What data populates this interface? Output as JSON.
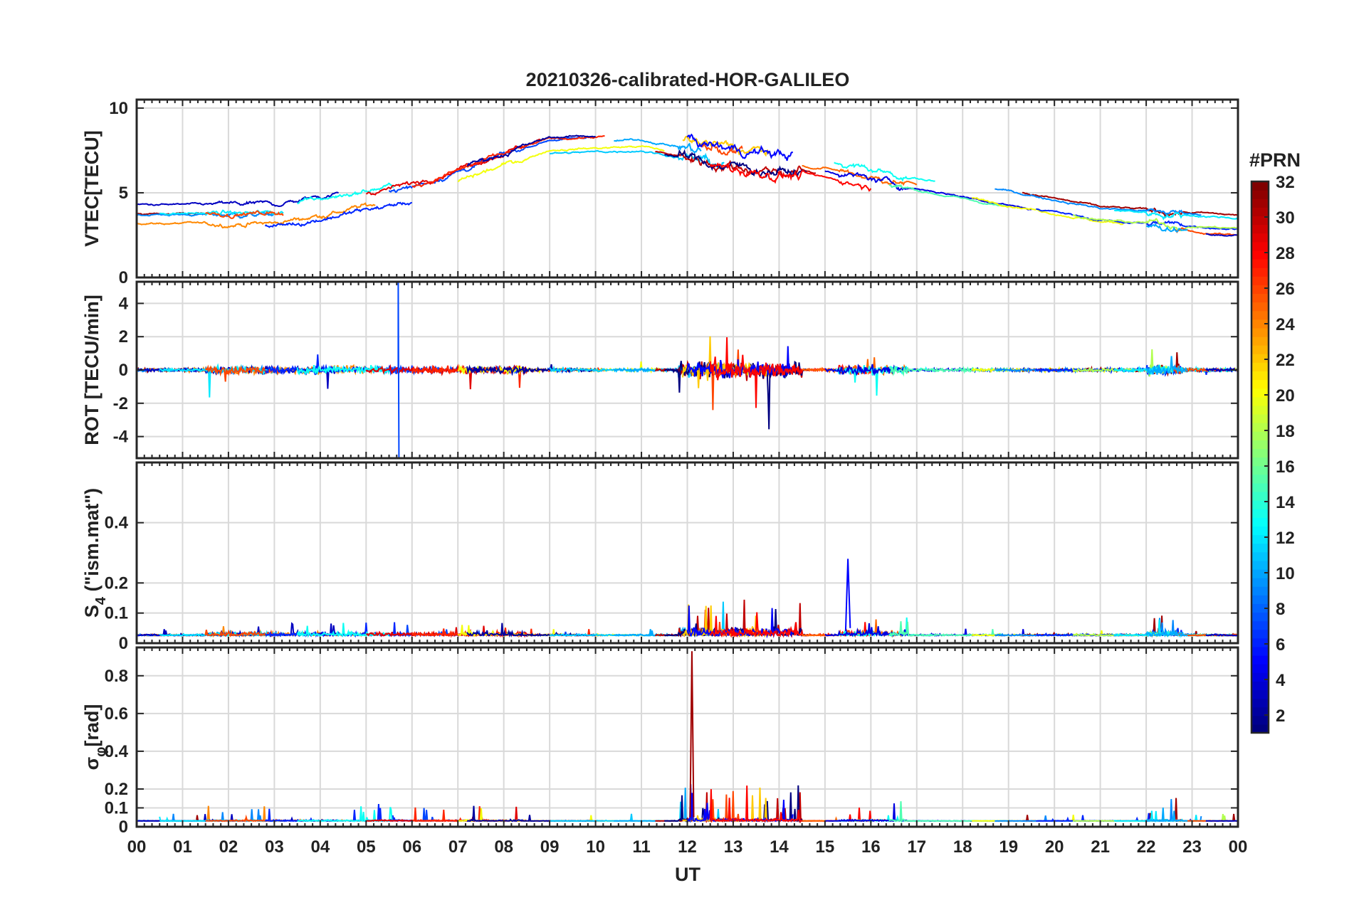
{
  "chart_data": {
    "type": "line",
    "title": "20210326-calibrated-HOR-GALILEO",
    "xlabel": "UT",
    "x_tick_labels": [
      "00",
      "01",
      "02",
      "03",
      "04",
      "05",
      "06",
      "07",
      "08",
      "09",
      "10",
      "11",
      "12",
      "13",
      "14",
      "15",
      "16",
      "17",
      "18",
      "19",
      "20",
      "21",
      "22",
      "23",
      "00"
    ],
    "x_range_hours": [
      0,
      24
    ],
    "grid": true,
    "colorbar": {
      "title": "#PRN",
      "range": [
        1,
        32
      ],
      "tick_labels": [
        "2",
        "4",
        "6",
        "8",
        "10",
        "12",
        "14",
        "16",
        "18",
        "20",
        "22",
        "24",
        "26",
        "28",
        "30",
        "32"
      ],
      "colormap": "jet",
      "dark_blue": "#00008f",
      "dark_red": "#800000"
    },
    "panels": [
      {
        "ylabel": "VTEC[TECU]",
        "ylim": [
          0,
          10.5
        ],
        "y_tick_labels": [
          "0",
          "5",
          "10"
        ],
        "y_tick_values": [
          0,
          5,
          10
        ],
        "typical_values": {
          "hours": [
            0,
            3,
            6,
            9,
            11,
            13,
            15,
            18,
            21,
            24
          ],
          "vtec": [
            3.5,
            3.5,
            5.0,
            7.8,
            8.0,
            7.0,
            6.5,
            5.0,
            3.5,
            3.0
          ]
        }
      },
      {
        "ylabel": "ROT [TECU/min]",
        "ylim": [
          -5.3,
          5.3
        ],
        "y_tick_labels": [
          "-4",
          "-2",
          "0",
          "2",
          "4"
        ],
        "y_tick_values": [
          -4,
          -2,
          0,
          2,
          4
        ],
        "peak_abs_value": 5.3,
        "peak_hour": 5.7
      },
      {
        "ylabel": "S4 (\"ism.mat\")",
        "ylabel_main": "S",
        "ylabel_sub": "4",
        "ylabel_rest": " (\"ism.mat\")",
        "ylim": [
          0,
          0.6
        ],
        "y_tick_labels": [
          "0",
          "0.1",
          "0.2",
          "0.4"
        ],
        "y_tick_values": [
          0,
          0.1,
          0.2,
          0.4
        ],
        "peak_value": 0.28,
        "peak_hour": 15.5
      },
      {
        "ylabel": "σφ[rad]",
        "ylabel_main": "σ",
        "ylabel_sub": "φ",
        "ylabel_rest": "[rad]",
        "ylim": [
          0,
          0.95
        ],
        "y_tick_labels": [
          "0",
          "0.1",
          "0.2",
          "0.4",
          "0.6",
          "0.8"
        ],
        "y_tick_values": [
          0,
          0.1,
          0.2,
          0.4,
          0.6,
          0.8
        ],
        "peak_value": 0.93,
        "peak_hour": 12.1
      }
    ]
  }
}
